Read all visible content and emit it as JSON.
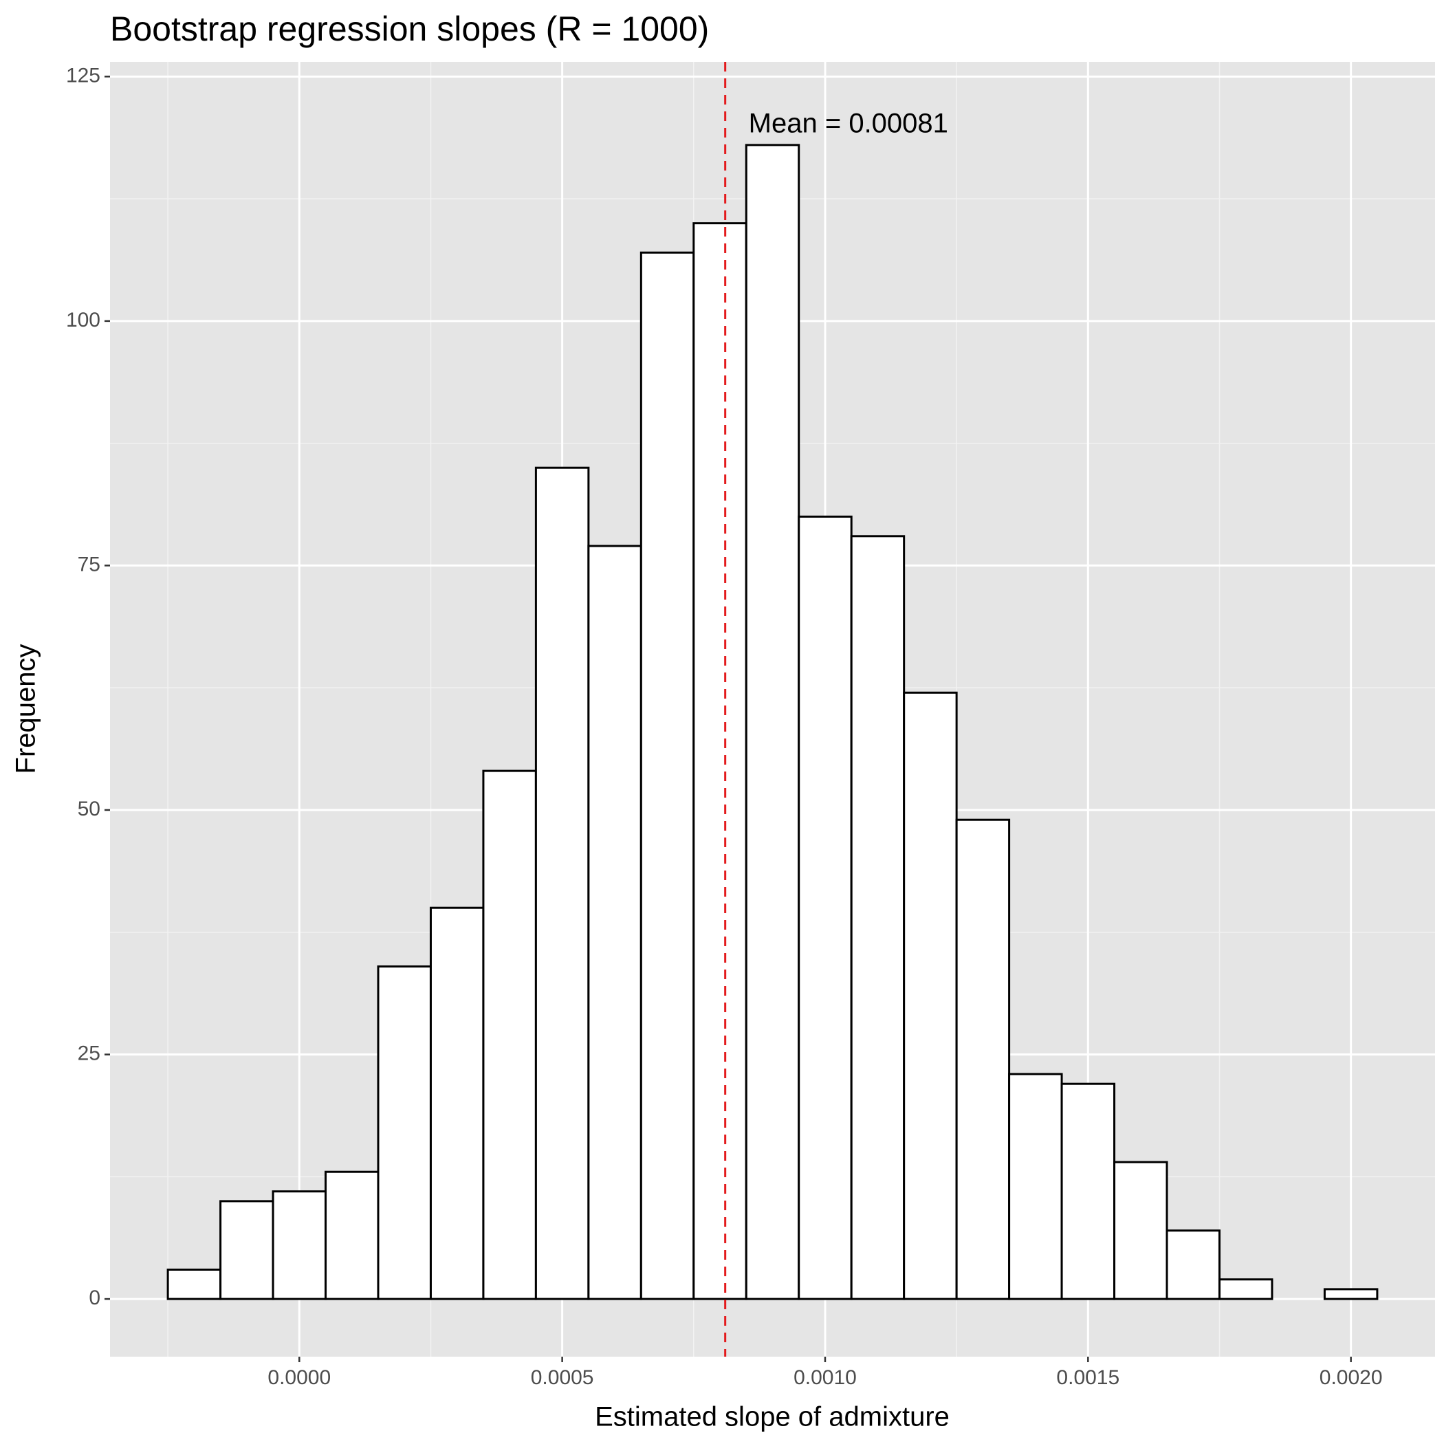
{
  "chart_data": {
    "type": "histogram",
    "title": "Bootstrap regression slopes (R = 1000)",
    "x_label": "Estimated slope of admixture",
    "y_label": "Frequency",
    "bins": [
      -0.00025,
      -0.00015,
      -5e-05,
      5e-05,
      0.00015,
      0.00025,
      0.00035,
      0.00045,
      0.00055,
      0.00065,
      0.00075,
      0.00085,
      0.00095,
      0.00105,
      0.00115,
      0.00125,
      0.00135,
      0.00145,
      0.00155,
      0.00165,
      0.00175,
      0.00185,
      0.00195,
      0.00205
    ],
    "values": [
      3,
      10,
      11,
      13,
      34,
      40,
      54,
      85,
      77,
      107,
      110,
      118,
      80,
      78,
      62,
      49,
      23,
      22,
      14,
      7,
      2,
      0,
      1
    ],
    "fill": "#ffffff",
    "edge_color": "#000000",
    "mean": 0.00081,
    "mean_color": "#e31a1c",
    "annotation": "Mean = 0.00081",
    "xlim": [
      -0.00036,
      0.00216
    ],
    "ylim": [
      -5.9,
      126.5
    ],
    "xticks": [
      {
        "value": 0,
        "label": "0.0000"
      },
      {
        "value": 0.0005,
        "label": "0.0005"
      },
      {
        "value": 0.001,
        "label": "0.0010"
      },
      {
        "value": 0.0015,
        "label": "0.0015"
      },
      {
        "value": 0.002,
        "label": "0.0020"
      }
    ],
    "yticks": [
      0,
      25,
      50,
      75,
      100,
      125
    ],
    "grid": true,
    "minor_grid": true
  }
}
